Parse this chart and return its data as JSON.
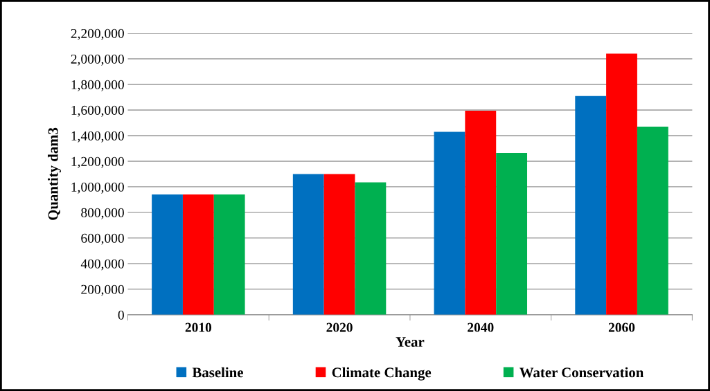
{
  "chart_data": {
    "type": "bar",
    "xlabel": "Year",
    "ylabel": "Quantity dam3",
    "categories": [
      "2010",
      "2020",
      "2040",
      "2060"
    ],
    "series": [
      {
        "name": "Baseline",
        "color": "#0070c0",
        "values": [
          940000,
          1100000,
          1430000,
          1710000
        ]
      },
      {
        "name": "Climate Change",
        "color": "#ff0000",
        "values": [
          940000,
          1100000,
          1595000,
          2040000
        ]
      },
      {
        "name": "Water Conservation",
        "color": "#00b050",
        "values": [
          940000,
          1035000,
          1265000,
          1470000
        ]
      }
    ],
    "ylim": [
      0,
      2200000
    ],
    "yticks": [
      {
        "value": 0,
        "label": "0"
      },
      {
        "value": 200000,
        "label": "200,000"
      },
      {
        "value": 400000,
        "label": "400,000"
      },
      {
        "value": 600000,
        "label": "600,000"
      },
      {
        "value": 800000,
        "label": "800,000"
      },
      {
        "value": 1000000,
        "label": "1,000,000"
      },
      {
        "value": 1200000,
        "label": "1,200,000"
      },
      {
        "value": 1400000,
        "label": "1,400,000"
      },
      {
        "value": 1600000,
        "label": "1,600,000"
      },
      {
        "value": 1800000,
        "label": "1,800,000"
      },
      {
        "value": 2000000,
        "label": "2,000,000"
      },
      {
        "value": 2200000,
        "label": "2,200,000"
      }
    ],
    "grid": "y",
    "legend": "bottom"
  }
}
